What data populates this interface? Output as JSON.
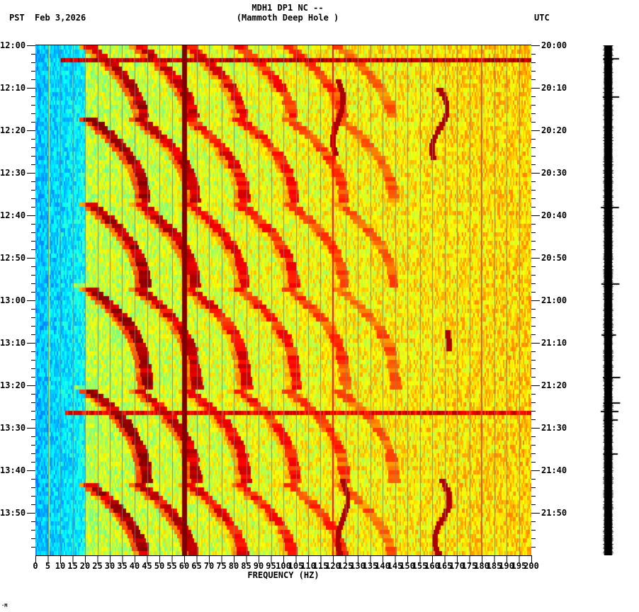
{
  "header": {
    "title_line1": "MDH1 DP1 NC --",
    "title_line2": "(Mammoth Deep Hole )",
    "left_timezone": "PST",
    "date": "Feb 3,2026",
    "right_timezone": "UTC"
  },
  "footer": {
    "corner_mark": "·M"
  },
  "chart_data": {
    "type": "heatmap",
    "title": "MDH1 DP1 NC -- (Mammoth Deep Hole )",
    "subtitle": "Feb 3,2026",
    "xlabel": "FREQUENCY (HZ)",
    "ylabel_left": "PST",
    "ylabel_right": "UTC",
    "xlim": [
      0,
      200
    ],
    "x_ticks": [
      "0",
      "5",
      "10",
      "15",
      "20",
      "25",
      "30",
      "35",
      "40",
      "45",
      "50",
      "55",
      "60",
      "65",
      "70",
      "75",
      "80",
      "85",
      "90",
      "95",
      "100",
      "105",
      "110",
      "115",
      "120",
      "125",
      "130",
      "135",
      "140",
      "145",
      "150",
      "155",
      "160",
      "165",
      "170",
      "175",
      "180",
      "185",
      "190",
      "195",
      "200"
    ],
    "y_ticks_left": [
      "12:00",
      "12:10",
      "12:20",
      "12:30",
      "12:40",
      "12:50",
      "13:00",
      "13:10",
      "13:20",
      "13:30",
      "13:40",
      "13:50"
    ],
    "y_ticks_right": [
      "20:00",
      "20:10",
      "20:20",
      "20:30",
      "20:40",
      "20:50",
      "21:00",
      "21:10",
      "21:20",
      "21:30",
      "21:40",
      "21:50"
    ],
    "time_range_minutes": [
      0,
      120
    ],
    "minor_tick_minutes": 2,
    "colormap": [
      "#0040ff",
      "#00a0ff",
      "#00ffff",
      "#80ff80",
      "#ffff00",
      "#ff8000",
      "#ff0000",
      "#800000"
    ],
    "grid_lines_every_hz": 5,
    "grid": true,
    "legend": "none",
    "constant_lines_hz": [
      {
        "freq": 60,
        "width_hz": 2.0,
        "intensity": 1.0
      },
      {
        "freq": 120,
        "width_hz": 0.5,
        "intensity": 0.85
      },
      {
        "freq": 180,
        "width_hz": 0.4,
        "intensity": 0.8
      },
      {
        "freq": 5.5,
        "width_hz": 0.3,
        "intensity": 0.55
      }
    ],
    "horizontal_events_minutes": [
      {
        "t": 3.5,
        "f_start": 10,
        "intensity": 1.0
      },
      {
        "t": 17,
        "f_start": 20,
        "intensity": 0.55
      },
      {
        "t": 36.5,
        "f_start": 20,
        "intensity": 0.55
      },
      {
        "t": 56.5,
        "f_start": 15,
        "intensity": 0.55
      },
      {
        "t": 80.5,
        "f_start": 15,
        "intensity": 0.5
      },
      {
        "t": 83.5,
        "f_start": 20,
        "intensity": 0.6
      },
      {
        "t": 86.5,
        "f_start": 12,
        "intensity": 0.95
      },
      {
        "t": 102.5,
        "f_start": 20,
        "intensity": 0.5
      }
    ],
    "sweep_cycles_minutes": [
      {
        "start": 0,
        "end": 17
      },
      {
        "start": 17,
        "end": 37
      },
      {
        "start": 37,
        "end": 57
      },
      {
        "start": 57,
        "end": 81
      },
      {
        "start": 81,
        "end": 103
      },
      {
        "start": 103,
        "end": 120
      }
    ],
    "sweep_harmonics_base_hz": [
      22,
      42,
      62,
      82,
      102,
      122
    ],
    "wandering_lines": [
      {
        "t_start": 10,
        "t_end": 27,
        "f_center": 163,
        "amp": 3
      },
      {
        "t_start": 102,
        "t_end": 120,
        "f_center": 164,
        "amp": 3
      },
      {
        "t_start": 8,
        "t_end": 26,
        "f_center": 122,
        "amp": 2
      },
      {
        "t_start": 102,
        "t_end": 120,
        "f_center": 124,
        "amp": 2
      },
      {
        "t_start": 67,
        "t_end": 72,
        "f_center": 166,
        "amp": 1
      }
    ],
    "background_level": {
      "low_freq_hz": 20,
      "low_value": 0.18,
      "high_value": 0.5
    }
  },
  "seismogram": {
    "label": "waveform trace",
    "spikes_minutes": [
      3,
      12,
      38,
      56,
      68,
      78,
      84,
      86,
      88,
      96
    ]
  }
}
